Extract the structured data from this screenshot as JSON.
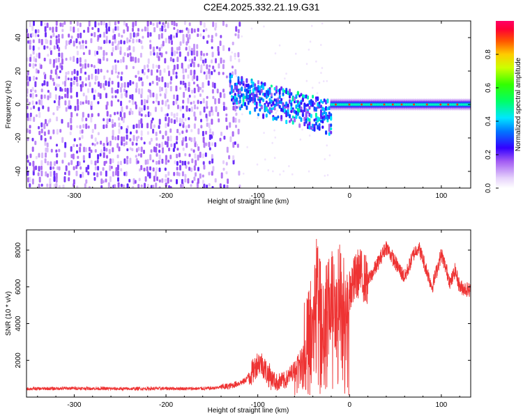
{
  "title": "C2E4.2025.332.21.19.G31",
  "colors": {
    "snr_line": "#ee3333",
    "spec_low": "#7a2cf0",
    "frame": "#000000"
  },
  "chart_data": [
    {
      "type": "heatmap",
      "title": "C2E4.2025.332.21.19.G31",
      "xlabel": "Height of straight line (km)",
      "ylabel": "Frequency (Hz)",
      "xlim": [
        -352,
        132
      ],
      "ylim": [
        -50,
        50
      ],
      "xticks": [
        -300,
        -200,
        -100,
        0,
        100
      ],
      "yticks": [
        -40,
        -20,
        0,
        20,
        40
      ],
      "colorbar": {
        "label": "Normalized spectral amplitude",
        "range": [
          0,
          1
        ],
        "ticks": [
          "0.0",
          "0.2",
          "0.4",
          "0.6",
          "0.8"
        ],
        "tick_values": [
          0,
          0.2,
          0.4,
          0.6,
          0.8
        ]
      },
      "regions": [
        {
          "name": "noise",
          "x": [
            -352,
            -130
          ],
          "freq": [
            -50,
            50
          ],
          "amplitude": 0.1
        },
        {
          "name": "transition",
          "x": [
            -130,
            -20
          ],
          "freq_center": [
            8,
            -8
          ],
          "amplitude": 0.35
        },
        {
          "name": "tone",
          "x": [
            -20,
            132
          ],
          "freq_center": 0,
          "amplitude": 0.45
        }
      ]
    },
    {
      "type": "line",
      "xlabel": "Height of straight line (km)",
      "ylabel": "SNR (10 * v/v)",
      "xlim": [
        -352,
        132
      ],
      "ylim": [
        0,
        9100
      ],
      "xticks": [
        -300,
        -200,
        -100,
        0,
        100
      ],
      "yticks": [
        2000,
        4000,
        6000,
        8000
      ],
      "series": [
        {
          "name": "SNR",
          "x": [
            -352,
            -300,
            -250,
            -200,
            -170,
            -150,
            -130,
            -115,
            -105,
            -100,
            -95,
            -90,
            -80,
            -70,
            -60,
            -55,
            -50,
            -45,
            -40,
            -35,
            -30,
            -25,
            -20,
            -15,
            -10,
            -5,
            0,
            10,
            20,
            30,
            40,
            50,
            60,
            70,
            75,
            80,
            90,
            100,
            110,
            115,
            120,
            132
          ],
          "y": [
            450,
            480,
            450,
            470,
            460,
            480,
            600,
            850,
            1400,
            1900,
            1800,
            1300,
            800,
            900,
            1500,
            2000,
            2600,
            3300,
            4300,
            6500,
            4000,
            4800,
            5800,
            5000,
            6200,
            5000,
            5800,
            6800,
            6300,
            7200,
            8200,
            7300,
            6500,
            7800,
            8200,
            7500,
            6000,
            7800,
            6200,
            6900,
            6000,
            5800
          ]
        }
      ]
    }
  ]
}
